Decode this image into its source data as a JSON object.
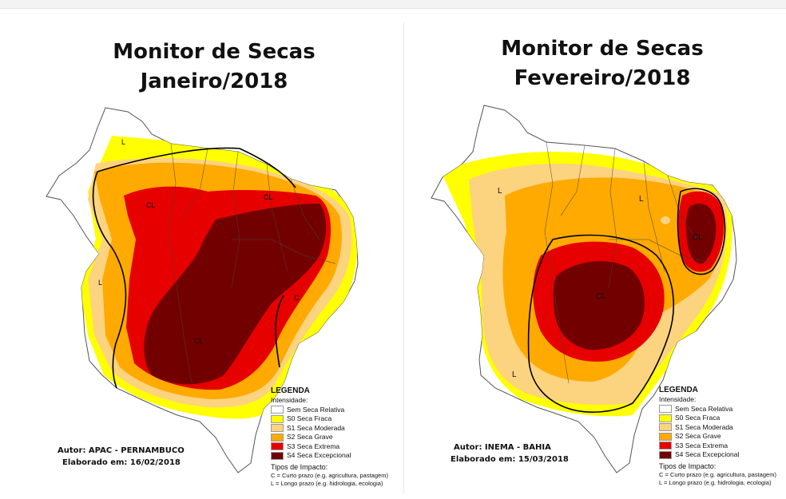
{
  "maps": [
    {
      "title_line1": "Monitor de Secas",
      "title_line2": "Janeiro/2018",
      "region_labels": [
        "L",
        "CL",
        "CL",
        "L",
        "C",
        "CL"
      ],
      "author": "Autor: APAC - PERNAMBUCO",
      "date": "Elaborado em: 16/02/2018"
    },
    {
      "title_line1": "Monitor de Secas",
      "title_line2": "Fevereiro/2018",
      "region_labels": [
        "L",
        "L",
        "CL",
        "CL",
        "L"
      ],
      "author": "Autor: INEMA - BAHIA",
      "date": "Elaborado em: 15/03/2018"
    }
  ],
  "legend": {
    "title": "LEGENDA",
    "intensity_label": "Intensidade:",
    "items": [
      {
        "label": "Sem Seca Relativa",
        "color": "#ffffff"
      },
      {
        "label": "S0 Seca Fraca",
        "color": "#ffff00"
      },
      {
        "label": "S1 Seca Moderada",
        "color": "#fcd37f"
      },
      {
        "label": "S2 Seca Grave",
        "color": "#ffaa00"
      },
      {
        "label": "S3 Seca Extrema",
        "color": "#e60000"
      },
      {
        "label": "S4 Seca Excepcional",
        "color": "#730000"
      }
    ],
    "impact_label": "Tipos de Impacto:",
    "impact_short": "C = Curto prazo (e.g. agricultura, pastagem)",
    "impact_long": "L = Longo prazo (e.g. hidrologia, ecologia)"
  }
}
